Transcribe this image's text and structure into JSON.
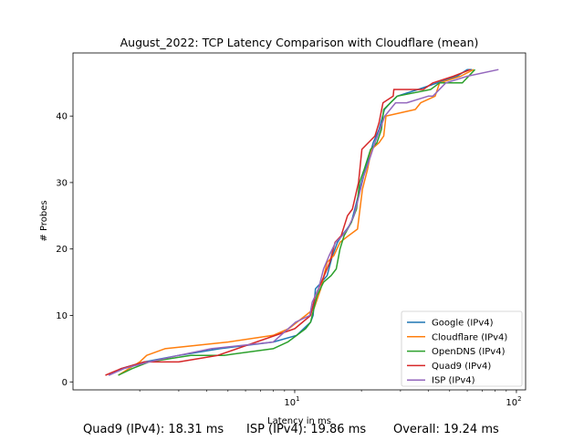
{
  "chart_data": {
    "type": "line",
    "title": "August_2022: TCP Latency Comparison with Cloudflare (mean)",
    "xlabel": "Latency in ms",
    "ylabel": "# Probes",
    "xscale": "log",
    "xlim": [
      1.0,
      110.0
    ],
    "ylim": [
      -1.2,
      49.5
    ],
    "x_ticks": [
      {
        "value": 10,
        "label": "10",
        "exp": "1"
      },
      {
        "value": 100,
        "label": "10",
        "exp": "2"
      }
    ],
    "y_ticks": [
      0,
      10,
      20,
      30,
      40
    ],
    "legend_position": "lower-right",
    "series": [
      {
        "name": "Google (IPv4)",
        "color": "#1f77b4",
        "x": [
          1.45,
          1.65,
          2.1,
          3.0,
          4.6,
          8.0,
          10.2,
          11.8,
          12.1,
          12.4,
          13.2,
          14.0,
          14.8,
          15.6,
          16.3,
          17.2,
          18.0,
          19.0,
          20.0,
          21.3,
          22.6,
          24.0,
          25.4,
          27.0,
          29.0,
          36.0,
          44.0,
          54.0,
          60.0,
          63.0
        ],
        "y": [
          1,
          2,
          3,
          4,
          5,
          6,
          7,
          9,
          10,
          14,
          15,
          16,
          19,
          21,
          22,
          23,
          24,
          27,
          30,
          33,
          36,
          38,
          41,
          42,
          43,
          44,
          45,
          46,
          47,
          47
        ]
      },
      {
        "name": "Cloudflare (IPv4)",
        "color": "#ff7f0e",
        "x": [
          1.6,
          2.0,
          2.15,
          2.6,
          5.0,
          8.0,
          9.4,
          11.2,
          12.2,
          13.1,
          14.0,
          15.0,
          16.0,
          17.5,
          19.2,
          20.2,
          21.3,
          22.2,
          24.0,
          25.2,
          25.8,
          35.0,
          37.0,
          43.0,
          45.0,
          56.0,
          64.0
        ],
        "y": [
          1,
          3,
          4,
          5,
          6,
          7,
          8,
          10,
          11,
          14,
          18,
          19,
          21,
          22,
          23,
          29,
          32,
          35,
          36,
          37,
          40,
          41,
          42,
          43,
          45,
          46,
          47
        ]
      },
      {
        "name": "OpenDNS (IPv4)",
        "color": "#2ca02c",
        "x": [
          1.6,
          1.85,
          2.2,
          3.4,
          4.8,
          8.0,
          9.3,
          11.2,
          11.8,
          12.6,
          13.5,
          14.6,
          15.4,
          16.0,
          16.7,
          18.0,
          19.0,
          19.6,
          20.6,
          22.0,
          23.5,
          24.6,
          25.2,
          29.0,
          41.0,
          45.0,
          57.0,
          65.0
        ],
        "y": [
          1,
          2,
          3,
          4,
          4,
          5,
          6,
          8,
          9,
          13,
          15,
          16,
          17,
          20,
          22,
          24,
          26,
          30,
          32,
          35,
          36,
          38,
          41,
          43,
          44,
          45,
          45,
          47
        ]
      },
      {
        "name": "Quad9 (IPv4)",
        "color": "#d62728",
        "x": [
          1.4,
          1.65,
          2.1,
          3.0,
          4.5,
          10.0,
          11.8,
          12.4,
          13.2,
          14.4,
          15.2,
          16.2,
          17.3,
          18.2,
          19.4,
          20.1,
          23.0,
          24.0,
          25.0,
          27.8,
          28.0,
          38.0,
          42.0,
          52.0,
          62.0
        ],
        "y": [
          1,
          2,
          3,
          3,
          4,
          8,
          10,
          13,
          15,
          18,
          21,
          22,
          25,
          26,
          30,
          35,
          37,
          39,
          42,
          43,
          44,
          44,
          45,
          46,
          47
        ]
      },
      {
        "name": "ISP (IPv4)",
        "color": "#9467bd",
        "x": [
          1.45,
          1.7,
          2.2,
          3.0,
          4.2,
          8.0,
          10.1,
          11.7,
          12.0,
          12.8,
          13.5,
          14.3,
          15.3,
          16.4,
          17.3,
          18.5,
          19.5,
          20.5,
          22.0,
          23.0,
          25.5,
          28.5,
          32.0,
          40.0,
          42.0,
          48.0,
          60.0,
          83.0
        ],
        "y": [
          1,
          2,
          3,
          4,
          5,
          6,
          9,
          10,
          12,
          14,
          17,
          19,
          21,
          22,
          23,
          25,
          28,
          31,
          34,
          36,
          40,
          42,
          42,
          43,
          43,
          45,
          46,
          47
        ]
      }
    ]
  },
  "footer": {
    "quad9": "Quad9 (IPv4): 18.31 ms",
    "isp": "ISP (IPv4): 19.86 ms",
    "overall": "Overall: 19.24 ms"
  }
}
